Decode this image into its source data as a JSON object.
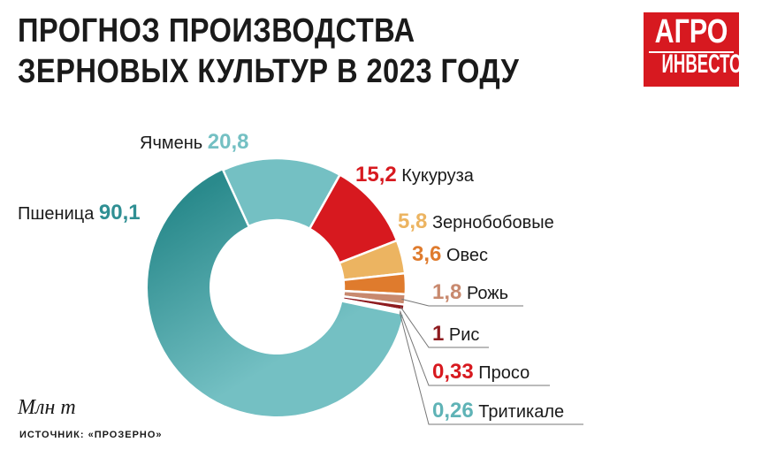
{
  "header": {
    "title_line1": "ПРОГНОЗ ПРОИЗВОДСТВА",
    "title_line2": "ЗЕРНОВЫХ КУЛЬТУР В 2023 ГОДУ"
  },
  "logo": {
    "line1": "АГРО",
    "line2": "ИНВЕСТОР",
    "color": "#d71920"
  },
  "footer": {
    "unit": "Млн т",
    "source": "ИСТОЧНИК: «ПРОЗЕРНО»"
  },
  "chart_data": {
    "type": "pie",
    "variant": "donut",
    "unit": "Млн т",
    "slices": [
      {
        "label": "Пшеница",
        "value": 90.1,
        "value_label": "90,1",
        "color": "#74c0c3"
      },
      {
        "label": "Ячмень",
        "value": 20.8,
        "value_label": "20,8",
        "color": "#74c0c3"
      },
      {
        "label": "Кукуруза",
        "value": 15.2,
        "value_label": "15,2",
        "color": "#d7191f"
      },
      {
        "label": "Зернобобовые",
        "value": 5.8,
        "value_label": "5,8",
        "color": "#ecb461"
      },
      {
        "label": "Овес",
        "value": 3.6,
        "value_label": "3,6",
        "color": "#df7b2d"
      },
      {
        "label": "Рожь",
        "value": 1.8,
        "value_label": "1,8",
        "color": "#c8896e"
      },
      {
        "label": "Рис",
        "value": 1,
        "value_label": "1",
        "color": "#8e1b1f"
      },
      {
        "label": "Просо",
        "value": 0.33,
        "value_label": "0,33",
        "color": "#d7191f"
      },
      {
        "label": "Тритикале",
        "value": 0.26,
        "value_label": "0,26",
        "color": "#2f8f93"
      }
    ],
    "value_label_colors": [
      "#2f8f93",
      "#74c0c3",
      "#d7191f",
      "#ecb461",
      "#df7b2d",
      "#c8896e",
      "#8e1b1f",
      "#d7191f",
      "#5fb3b6"
    ],
    "gradient_color": "#2a8a8c",
    "legend": "labels beside slices"
  }
}
